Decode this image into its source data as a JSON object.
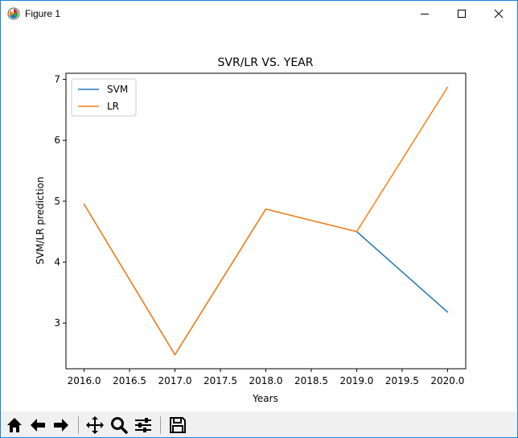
{
  "window": {
    "title": "Figure 1",
    "controls": {
      "minimize": "minimize",
      "maximize": "maximize",
      "close": "close"
    }
  },
  "toolbar": {
    "buttons": [
      {
        "name": "home",
        "icon": "home-icon"
      },
      {
        "name": "back",
        "icon": "arrow-left-icon"
      },
      {
        "name": "forward",
        "icon": "arrow-right-icon"
      },
      {
        "name": "pan",
        "icon": "move-icon"
      },
      {
        "name": "zoom",
        "icon": "magnifier-icon"
      },
      {
        "name": "configure-subplots",
        "icon": "sliders-icon"
      },
      {
        "name": "save",
        "icon": "floppy-disk-icon"
      }
    ]
  },
  "chart_data": {
    "type": "line",
    "title": "SVR/LR VS. YEAR",
    "xlabel": "Years",
    "ylabel": "SVM/LR prediction",
    "x": [
      2016,
      2017,
      2018,
      2019,
      2020
    ],
    "xlim": [
      2015.8,
      2020.2
    ],
    "ylim": [
      2.25,
      7.1
    ],
    "xticks": [
      2016.0,
      2016.5,
      2017.0,
      2017.5,
      2018.0,
      2018.5,
      2019.0,
      2019.5,
      2020.0
    ],
    "xtick_labels": [
      "2016.0",
      "2016.5",
      "2017.0",
      "2017.5",
      "2018.0",
      "2018.5",
      "2019.0",
      "2019.5",
      "2020.0"
    ],
    "yticks": [
      3,
      4,
      5,
      6,
      7
    ],
    "ytick_labels": [
      "3",
      "4",
      "5",
      "6",
      "7"
    ],
    "grid": false,
    "legend_position": "upper-left",
    "series": [
      {
        "name": "SVM",
        "color": "#1f77b4",
        "values": [
          4.95,
          2.48,
          4.87,
          4.5,
          3.18
        ]
      },
      {
        "name": "LR",
        "color": "#ff7f0e",
        "values": [
          4.95,
          2.48,
          4.87,
          4.5,
          6.87
        ]
      }
    ]
  }
}
